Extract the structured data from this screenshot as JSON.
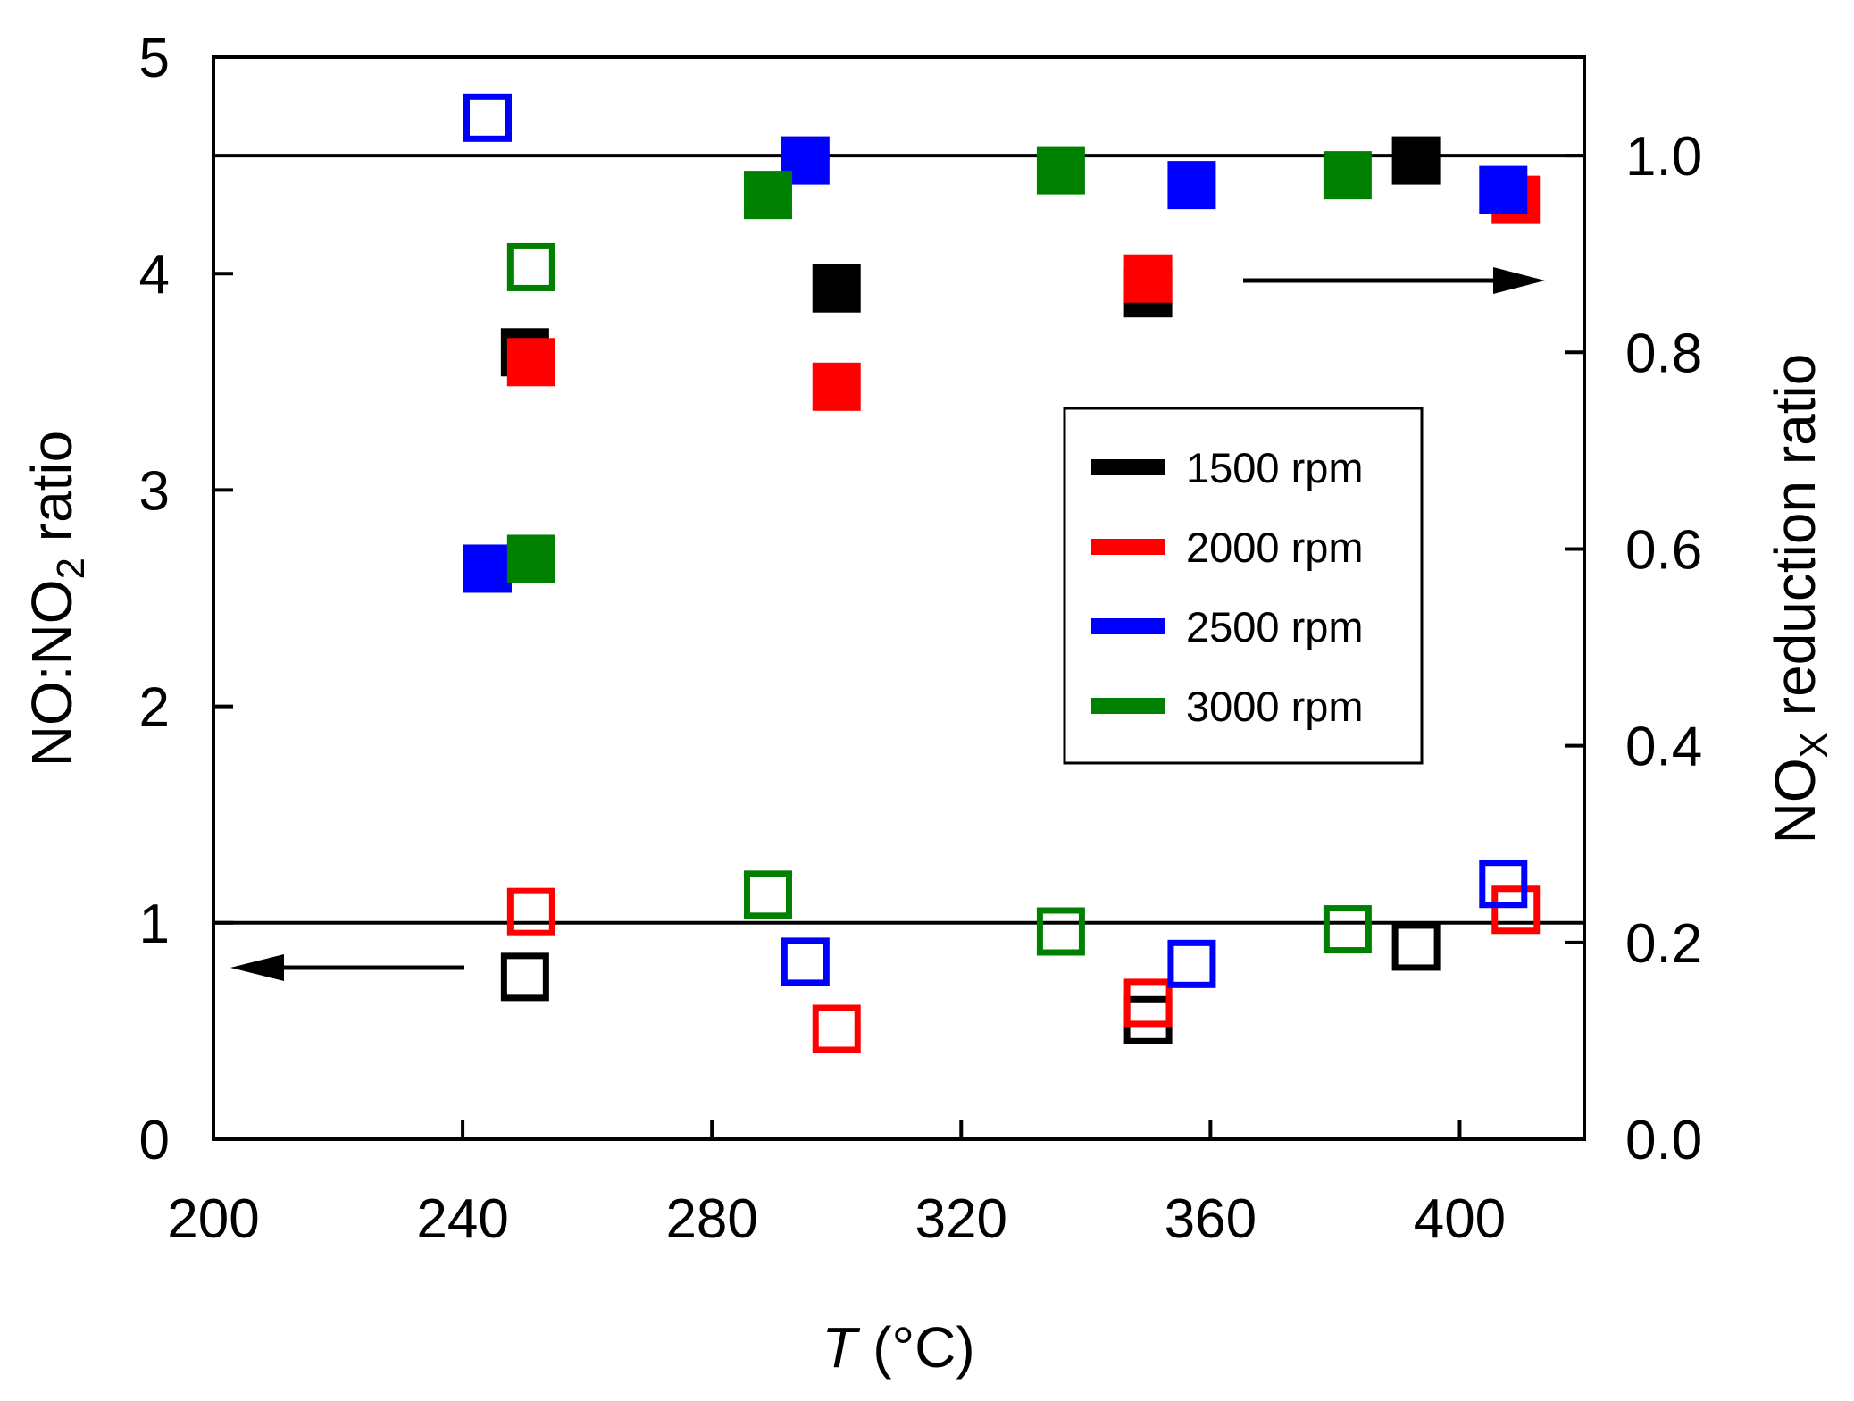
{
  "chart_data": {
    "type": "scatter",
    "xlabel": "T",
    "xlabel_unit": "(°C)",
    "ylabel_left": {
      "main": "NO:NO",
      "sub": "2",
      "suffix": " ratio"
    },
    "ylabel_right": {
      "main": "NO",
      "sub": "X",
      "suffix": " reduction ratio"
    },
    "xlim": [
      200,
      420
    ],
    "ylim_left": [
      0,
      5
    ],
    "ylim_right": [
      0,
      1.1
    ],
    "x_ticks": [
      200,
      240,
      280,
      320,
      360,
      400
    ],
    "x_tick_labels": [
      "200",
      "240",
      "280",
      "320",
      "360",
      "400"
    ],
    "y_left_ticks": [
      0,
      1,
      2,
      3,
      4,
      5
    ],
    "y_left_tick_labels": [
      "0",
      "1",
      "2",
      "3",
      "4",
      "5"
    ],
    "y_right_ticks": [
      0,
      0.2,
      0.4,
      0.6,
      0.8,
      1.0
    ],
    "y_right_tick_labels": [
      "0.0",
      "0.2",
      "0.4",
      "0.6",
      "0.8",
      "1.0"
    ],
    "reference_lines": [
      {
        "axis": "left",
        "y": 1
      },
      {
        "axis": "right",
        "y": 1.0
      }
    ],
    "legend_position": "center-right",
    "series": [
      {
        "name": "1500 rpm",
        "color": "#000000",
        "nox_reduction": [
          {
            "x": 250,
            "y": 0.8
          },
          {
            "x": 300,
            "y": 0.865
          },
          {
            "x": 350,
            "y": 0.86
          },
          {
            "x": 393,
            "y": 0.995
          }
        ],
        "no_no2": [
          {
            "x": 250,
            "y": 0.75
          },
          {
            "x": 350,
            "y": 0.55
          },
          {
            "x": 393,
            "y": 0.89
          }
        ]
      },
      {
        "name": "2000 rpm",
        "color": "#ff0000",
        "nox_reduction": [
          {
            "x": 251,
            "y": 0.79
          },
          {
            "x": 300,
            "y": 0.765
          },
          {
            "x": 350,
            "y": 0.875
          },
          {
            "x": 409,
            "y": 0.955
          }
        ],
        "no_no2": [
          {
            "x": 251,
            "y": 1.05
          },
          {
            "x": 300,
            "y": 0.51
          },
          {
            "x": 350,
            "y": 0.63
          },
          {
            "x": 409,
            "y": 1.06
          }
        ]
      },
      {
        "name": "2500 rpm",
        "color": "#0000ff",
        "nox_reduction": [
          {
            "x": 244,
            "y": 0.58
          },
          {
            "x": 295,
            "y": 0.995
          },
          {
            "x": 357,
            "y": 0.97
          },
          {
            "x": 407,
            "y": 0.965
          }
        ],
        "no_no2": [
          {
            "x": 244,
            "y": 4.72
          },
          {
            "x": 295,
            "y": 0.82
          },
          {
            "x": 357,
            "y": 0.81
          },
          {
            "x": 407,
            "y": 1.18
          }
        ]
      },
      {
        "name": "3000 rpm",
        "color": "#008000",
        "nox_reduction": [
          {
            "x": 251,
            "y": 0.59
          },
          {
            "x": 289,
            "y": 0.96
          },
          {
            "x": 336,
            "y": 0.985
          },
          {
            "x": 382,
            "y": 0.98
          }
        ],
        "no_no2": [
          {
            "x": 251,
            "y": 4.03
          },
          {
            "x": 289,
            "y": 1.13
          },
          {
            "x": 336,
            "y": 0.96
          },
          {
            "x": 382,
            "y": 0.97
          }
        ]
      }
    ]
  }
}
